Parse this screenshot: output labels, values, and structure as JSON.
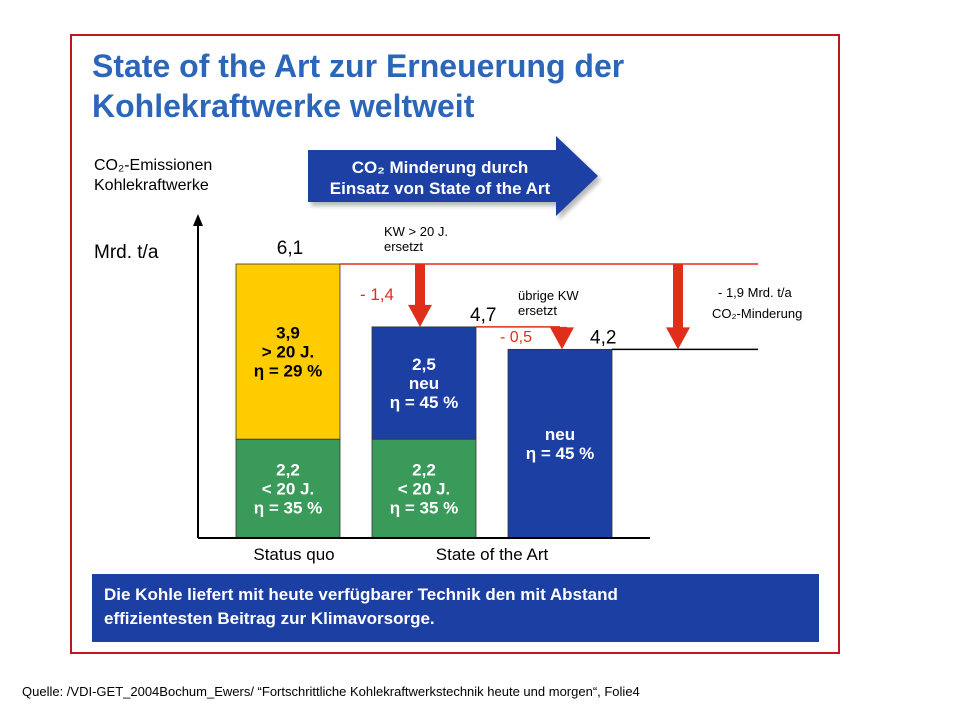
{
  "title_lines": [
    "State of the Art zur Erneuerung der",
    "Kohlekraftwerke weltweit"
  ],
  "source": "Quelle: /VDI-GET_2004Bochum_Ewers/ “Fortschrittliche Kohlekraftwerkstechnik heute und morgen“, Folie4",
  "colors": {
    "title": "#2b66b8",
    "frame": "#c0171c",
    "yellow": "#ffcc00",
    "green": "#3a9a5a",
    "blue": "#1b3fa3",
    "red": "#e02e1a",
    "banner": "#1b3fa3"
  },
  "axis": {
    "ylabel_lines": [
      "CO₂-Emissionen",
      "Kohlekraftwerke"
    ],
    "unit": "Mrd. t/a"
  },
  "arrow_banner": {
    "lines": [
      "CO₂ Minderung durch",
      "Einsatz von State of the Art"
    ]
  },
  "bottom_banner": {
    "lines": [
      "Die Kohle liefert mit heute verfügbarer Technik den mit Abstand",
      "effizientesten Beitrag zur Klimavorsorge."
    ]
  },
  "chart_data": {
    "type": "bar",
    "stacked": true,
    "unit": "Mrd. t/a",
    "ylim": [
      0,
      6.1
    ],
    "categories": [
      "Status quo",
      "State of the Art",
      "State of the Art"
    ],
    "group_labels": [
      "Status quo",
      "State of the Art"
    ],
    "bars": [
      {
        "total": 6.1,
        "total_label": "6,1",
        "segments": [
          {
            "value": 2.2,
            "color_key": "green",
            "label_lines": [
              "2,2",
              "< 20 J.",
              "η = 35 %"
            ]
          },
          {
            "value": 3.9,
            "color_key": "yellow",
            "label_lines": [
              "3,9",
              "> 20 J.",
              "η = 29 %"
            ]
          }
        ]
      },
      {
        "total": 4.7,
        "total_label": "4,7",
        "segments": [
          {
            "value": 2.2,
            "color_key": "green",
            "label_lines": [
              "2,2",
              "< 20 J.",
              "η = 35 %"
            ]
          },
          {
            "value": 2.5,
            "color_key": "blue",
            "label_lines": [
              "2,5",
              "neu",
              "η = 45 %"
            ]
          }
        ]
      },
      {
        "total": 4.2,
        "total_label": "4,2",
        "segments": [
          {
            "value": 4.2,
            "color_key": "blue",
            "label_lines": [
              "neu",
              "η = 45 %"
            ]
          }
        ]
      }
    ],
    "reductions": [
      {
        "from": 6.1,
        "to": 4.7,
        "label": "- 1,4",
        "note_lines": [
          "KW  > 20 J.",
          "ersetzt"
        ]
      },
      {
        "from": 4.7,
        "to": 4.2,
        "label": "- 0,5",
        "note_lines": [
          "übrige KW",
          "ersetzt"
        ]
      },
      {
        "from": 6.1,
        "to": 4.2,
        "label_lines": [
          "- 1,9 Mrd. t/a",
          "CO₂-Minderung"
        ]
      }
    ]
  }
}
